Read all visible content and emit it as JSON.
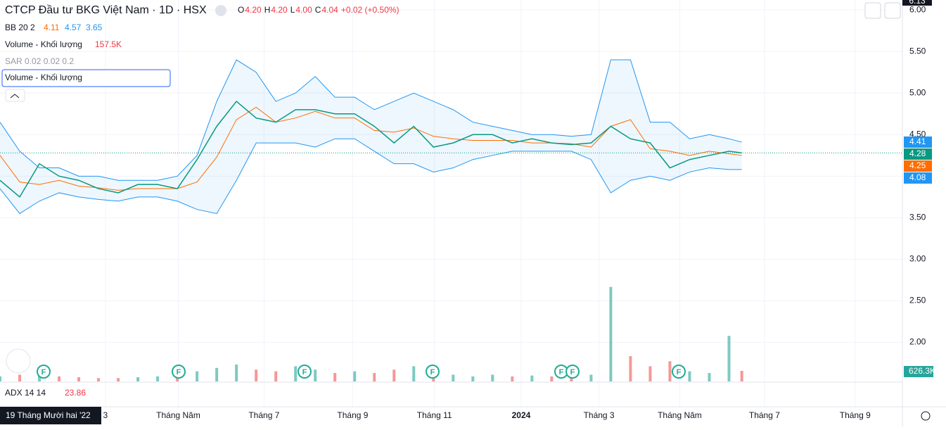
{
  "header": {
    "title": "CTCP Đầu tư BKG Việt Nam · 1D · HSX",
    "ohlc": [
      {
        "label": "O",
        "value": "4.20"
      },
      {
        "label": "H",
        "value": "4.20"
      },
      {
        "label": "L",
        "value": "4.00"
      },
      {
        "label": "C",
        "value": "4.04"
      }
    ],
    "change": "+0.02 (+0.50%)",
    "bb": {
      "label": "BB 20 2",
      "values": [
        "4.11",
        "4.57",
        "3.65"
      ]
    },
    "volume": {
      "label": "Volume - Khối lượng",
      "value": "157.5K"
    },
    "sar": {
      "label": "SAR 0.02 0.02 0.2"
    },
    "legend_box": "Volume - Khối lượng",
    "adx": {
      "label": "ADX 14 14",
      "value": "23.86"
    },
    "crosshair_date": "19 Tháng Mười hai '22",
    "crosshair_price": "6.13",
    "event_marker": "F"
  },
  "chart_data": {
    "type": "line",
    "x": [
      0,
      2,
      4,
      6,
      8,
      10,
      12,
      14,
      16,
      18,
      20,
      22,
      24,
      26,
      28,
      30,
      32,
      34,
      36,
      38,
      40,
      42,
      44,
      46,
      48,
      50,
      52,
      54,
      56,
      58,
      60,
      62,
      64,
      66,
      68,
      70,
      72,
      74,
      75.3
    ],
    "xlim": [
      0,
      91.6
    ],
    "xticks": [
      {
        "value": 10.7,
        "label": "3"
      },
      {
        "value": 18.1,
        "label": "Tháng Năm"
      },
      {
        "value": 26.8,
        "label": "Tháng 7"
      },
      {
        "value": 35.8,
        "label": "Tháng 9"
      },
      {
        "value": 44.1,
        "label": "Tháng 11"
      },
      {
        "value": 52.9,
        "label": "2024"
      },
      {
        "value": 60.8,
        "label": "Tháng 3"
      },
      {
        "value": 69,
        "label": "Tháng Năm"
      },
      {
        "value": 77.6,
        "label": "Tháng 7"
      },
      {
        "value": 86.8,
        "label": "Tháng 9"
      }
    ],
    "ylim": [
      1.53,
      6.12
    ],
    "yticks": [
      {
        "value": 2,
        "label": "2.00"
      },
      {
        "value": 2.5,
        "label": "2.50"
      },
      {
        "value": 3,
        "label": "3.00"
      },
      {
        "value": 3.5,
        "label": "3.50"
      },
      {
        "value": 4,
        "label": "4.00"
      },
      {
        "value": 4.5,
        "label": "4.50"
      },
      {
        "value": 5,
        "label": "5.00"
      },
      {
        "value": 5.5,
        "label": "5.50"
      },
      {
        "value": 6,
        "label": "6.00"
      }
    ],
    "grid": true,
    "close": {
      "color": "#089981",
      "values": [
        3.95,
        3.75,
        4.15,
        4.0,
        3.95,
        3.85,
        3.8,
        3.9,
        3.9,
        3.85,
        4.2,
        4.6,
        4.9,
        4.7,
        4.65,
        4.8,
        4.8,
        4.75,
        4.75,
        4.6,
        4.4,
        4.6,
        4.35,
        4.4,
        4.5,
        4.5,
        4.4,
        4.45,
        4.4,
        4.38,
        4.4,
        4.6,
        4.45,
        4.4,
        4.1,
        4.2,
        4.25,
        4.3,
        4.28
      ]
    },
    "bb_upper": {
      "color": "#2196f3",
      "values": [
        4.65,
        4.3,
        4.1,
        4.1,
        4.0,
        4.0,
        3.95,
        3.95,
        3.95,
        4.0,
        4.25,
        4.9,
        5.4,
        5.25,
        4.9,
        5.0,
        5.2,
        4.95,
        4.95,
        4.8,
        4.9,
        5.0,
        4.9,
        4.8,
        4.65,
        4.6,
        4.55,
        4.5,
        4.5,
        4.48,
        4.5,
        5.4,
        5.4,
        4.65,
        4.65,
        4.45,
        4.5,
        4.45,
        4.41
      ]
    },
    "bb_basis": {
      "color": "#ff6d00",
      "values": [
        4.25,
        3.93,
        3.9,
        3.95,
        3.88,
        3.86,
        3.83,
        3.85,
        3.85,
        3.85,
        3.93,
        4.23,
        4.68,
        4.83,
        4.65,
        4.7,
        4.78,
        4.7,
        4.7,
        4.55,
        4.53,
        4.58,
        4.48,
        4.45,
        4.43,
        4.43,
        4.43,
        4.4,
        4.4,
        4.39,
        4.35,
        4.6,
        4.68,
        4.33,
        4.3,
        4.25,
        4.3,
        4.27,
        4.25
      ]
    },
    "bb_lower": {
      "color": "#2196f3",
      "values": [
        3.85,
        3.55,
        3.7,
        3.8,
        3.75,
        3.72,
        3.7,
        3.75,
        3.75,
        3.7,
        3.6,
        3.55,
        3.95,
        4.4,
        4.4,
        4.4,
        4.35,
        4.45,
        4.45,
        4.3,
        4.15,
        4.15,
        4.05,
        4.1,
        4.2,
        4.25,
        4.3,
        4.3,
        4.3,
        4.3,
        4.2,
        3.8,
        3.95,
        4.0,
        3.95,
        4.05,
        4.1,
        4.08,
        4.08
      ]
    },
    "volume": {
      "up_color": "#26a69a",
      "down_color": "#ef5350",
      "ylim": [
        0,
        22600
      ],
      "values": [
        300,
        400,
        350,
        300,
        250,
        200,
        200,
        250,
        300,
        250,
        600,
        800,
        1000,
        700,
        600,
        900,
        700,
        500,
        600,
        500,
        700,
        900,
        600,
        400,
        300,
        400,
        300,
        350,
        300,
        350,
        400,
        5600,
        1500,
        900,
        1200,
        600,
        500,
        2700,
        626.3
      ],
      "value_labels": [
        null,
        null,
        null,
        null,
        null,
        null,
        null,
        null,
        null,
        null,
        null,
        null,
        null,
        null,
        null,
        null,
        null,
        null,
        null,
        null,
        null,
        null,
        null,
        null,
        null,
        null,
        null,
        null,
        null,
        null,
        null,
        null,
        null,
        null,
        null,
        null,
        null,
        null,
        "626.3K"
      ]
    }
  }
}
